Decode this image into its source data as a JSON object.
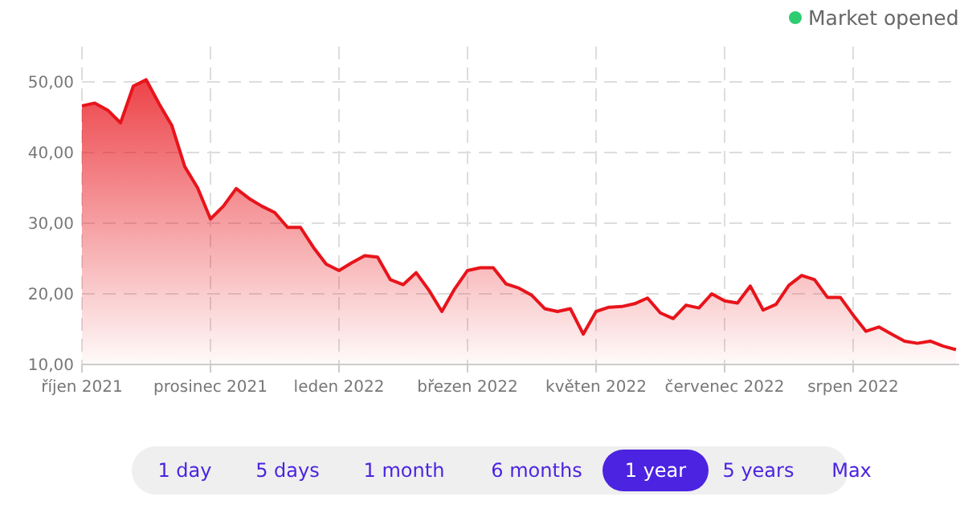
{
  "chart_data": {
    "type": "area",
    "color": "#e8141b",
    "categories": [
      "říjen 2021",
      null,
      null,
      null,
      null,
      null,
      null,
      null,
      null,
      null,
      "prosinec 2021",
      null,
      null,
      null,
      null,
      null,
      null,
      null,
      null,
      null,
      "leden 2022",
      null,
      null,
      null,
      null,
      null,
      null,
      null,
      null,
      null,
      "březen 2022",
      null,
      null,
      null,
      null,
      null,
      null,
      null,
      null,
      null,
      "květen 2022",
      null,
      null,
      null,
      null,
      null,
      null,
      null,
      null,
      null,
      "červenec 2022",
      null,
      null,
      null,
      null,
      null,
      null,
      null,
      null,
      null,
      "srpen 2022",
      null,
      null,
      null,
      null,
      null,
      null,
      null,
      null
    ],
    "values": [
      46.6,
      47.0,
      46.0,
      44.2,
      49.4,
      50.3,
      46.9,
      43.8,
      38.0,
      35.0,
      30.6,
      32.4,
      34.9,
      33.5,
      32.4,
      31.5,
      29.4,
      29.4,
      26.6,
      24.2,
      23.3,
      24.4,
      25.4,
      25.2,
      22.0,
      21.3,
      23.0,
      20.5,
      17.5,
      20.7,
      23.3,
      23.7,
      23.7,
      21.4,
      20.8,
      19.8,
      17.9,
      17.5,
      17.9,
      14.3,
      17.5,
      18.1,
      18.2,
      18.6,
      19.4,
      17.3,
      16.5,
      18.4,
      18.0,
      20.0,
      19.0,
      18.7,
      21.1,
      17.7,
      18.5,
      21.2,
      22.6,
      22.0,
      19.5,
      19.5,
      17.0,
      14.7,
      15.3,
      14.3,
      13.3,
      13.0,
      13.3,
      12.6,
      12.1
    ],
    "ylim": [
      10,
      55
    ],
    "yticks": [
      {
        "value": 10,
        "label": "10,00"
      },
      {
        "value": 20,
        "label": "20,00"
      },
      {
        "value": 30,
        "label": "30,00"
      },
      {
        "value": 40,
        "label": "40,00"
      },
      {
        "value": 50,
        "label": "50,00"
      }
    ],
    "grid": true,
    "annotations": [
      "Market opened",
      "1 day",
      "5 days",
      "1 month",
      "6 months",
      "1 year",
      "5 years",
      "Max"
    ]
  }
}
